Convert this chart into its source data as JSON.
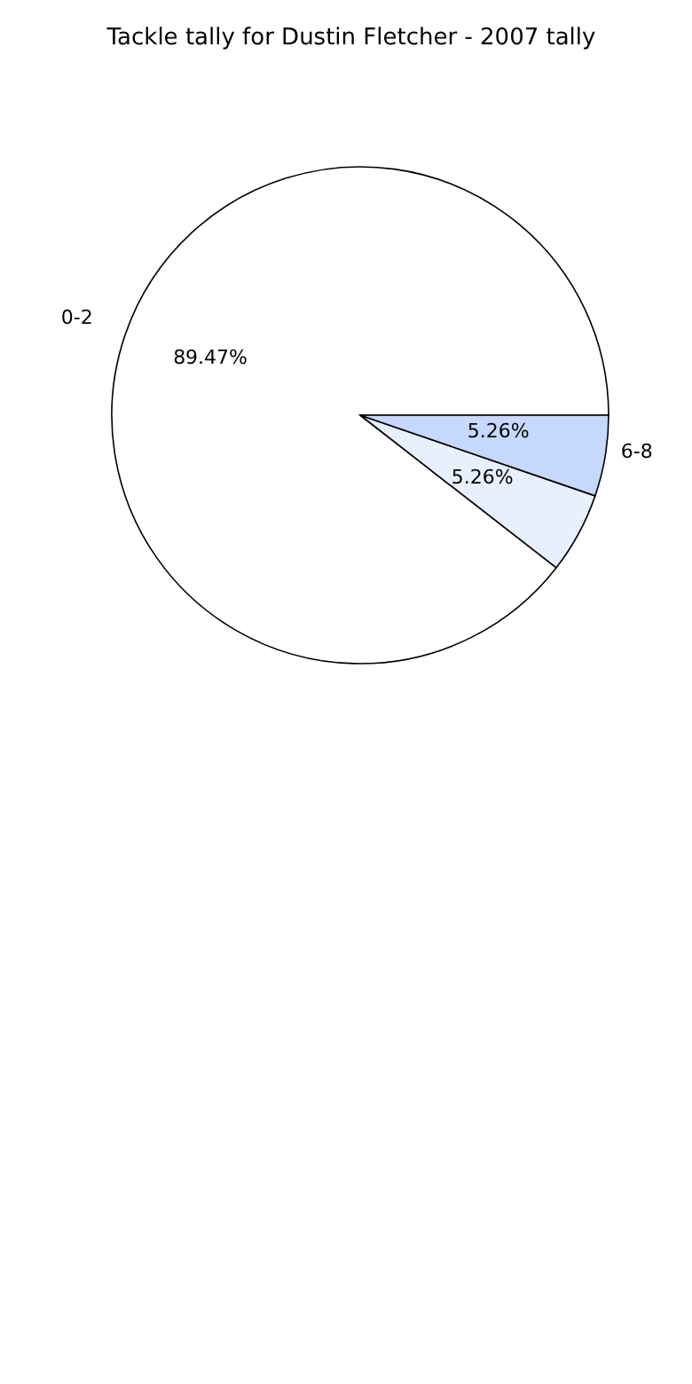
{
  "chart_data": {
    "type": "pie",
    "title": "Tackle tally for Dustin Fletcher - 2007 tally",
    "categories": [
      "0-2",
      null,
      "6-8"
    ],
    "values": [
      89.47,
      5.26,
      5.26
    ],
    "value_labels": [
      "89.47%",
      "5.26%",
      "5.26%"
    ],
    "colors": [
      "#ffffff",
      "#e8f0fe",
      "#c6d9fd"
    ]
  }
}
